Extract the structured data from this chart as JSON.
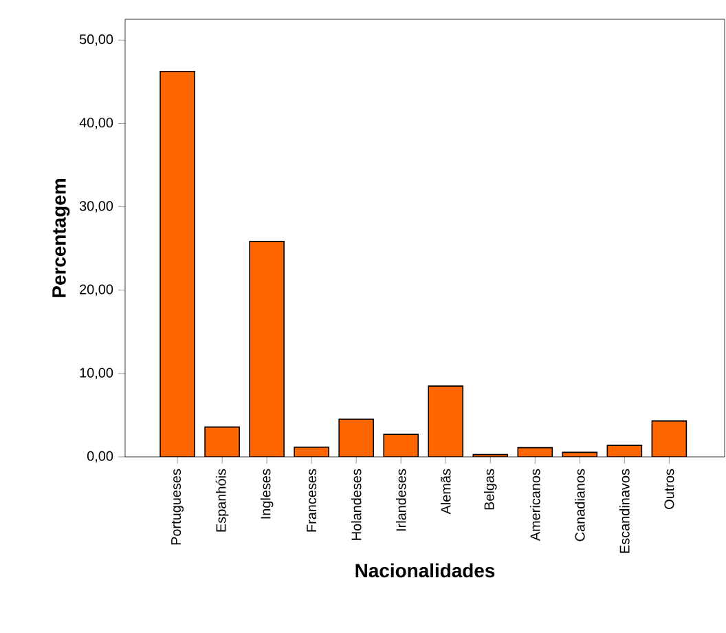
{
  "chart_data": {
    "type": "bar",
    "xlabel": "Nacionalidades",
    "ylabel": "Percentagem",
    "categories": [
      "Portugueses",
      "Espanhóis",
      "Ingleses",
      "Franceses",
      "Holandeses",
      "Irlandeses",
      "Alemãs",
      "Belgas",
      "Americanos",
      "Canadianos",
      "Escandinavos",
      "Outros"
    ],
    "values": [
      46.25,
      3.58,
      25.85,
      1.16,
      4.52,
      2.7,
      8.49,
      0.28,
      1.1,
      0.55,
      1.38,
      4.3
    ],
    "color": "#ff6600",
    "ylim": [
      0,
      52.5
    ],
    "yticks": [
      {
        "value": 0,
        "label": "0,00"
      },
      {
        "value": 10,
        "label": "10,00"
      },
      {
        "value": 20,
        "label": "20,00"
      },
      {
        "value": 30,
        "label": "30,00"
      },
      {
        "value": 40,
        "label": "40,00"
      },
      {
        "value": 50,
        "label": "50,00"
      }
    ]
  }
}
